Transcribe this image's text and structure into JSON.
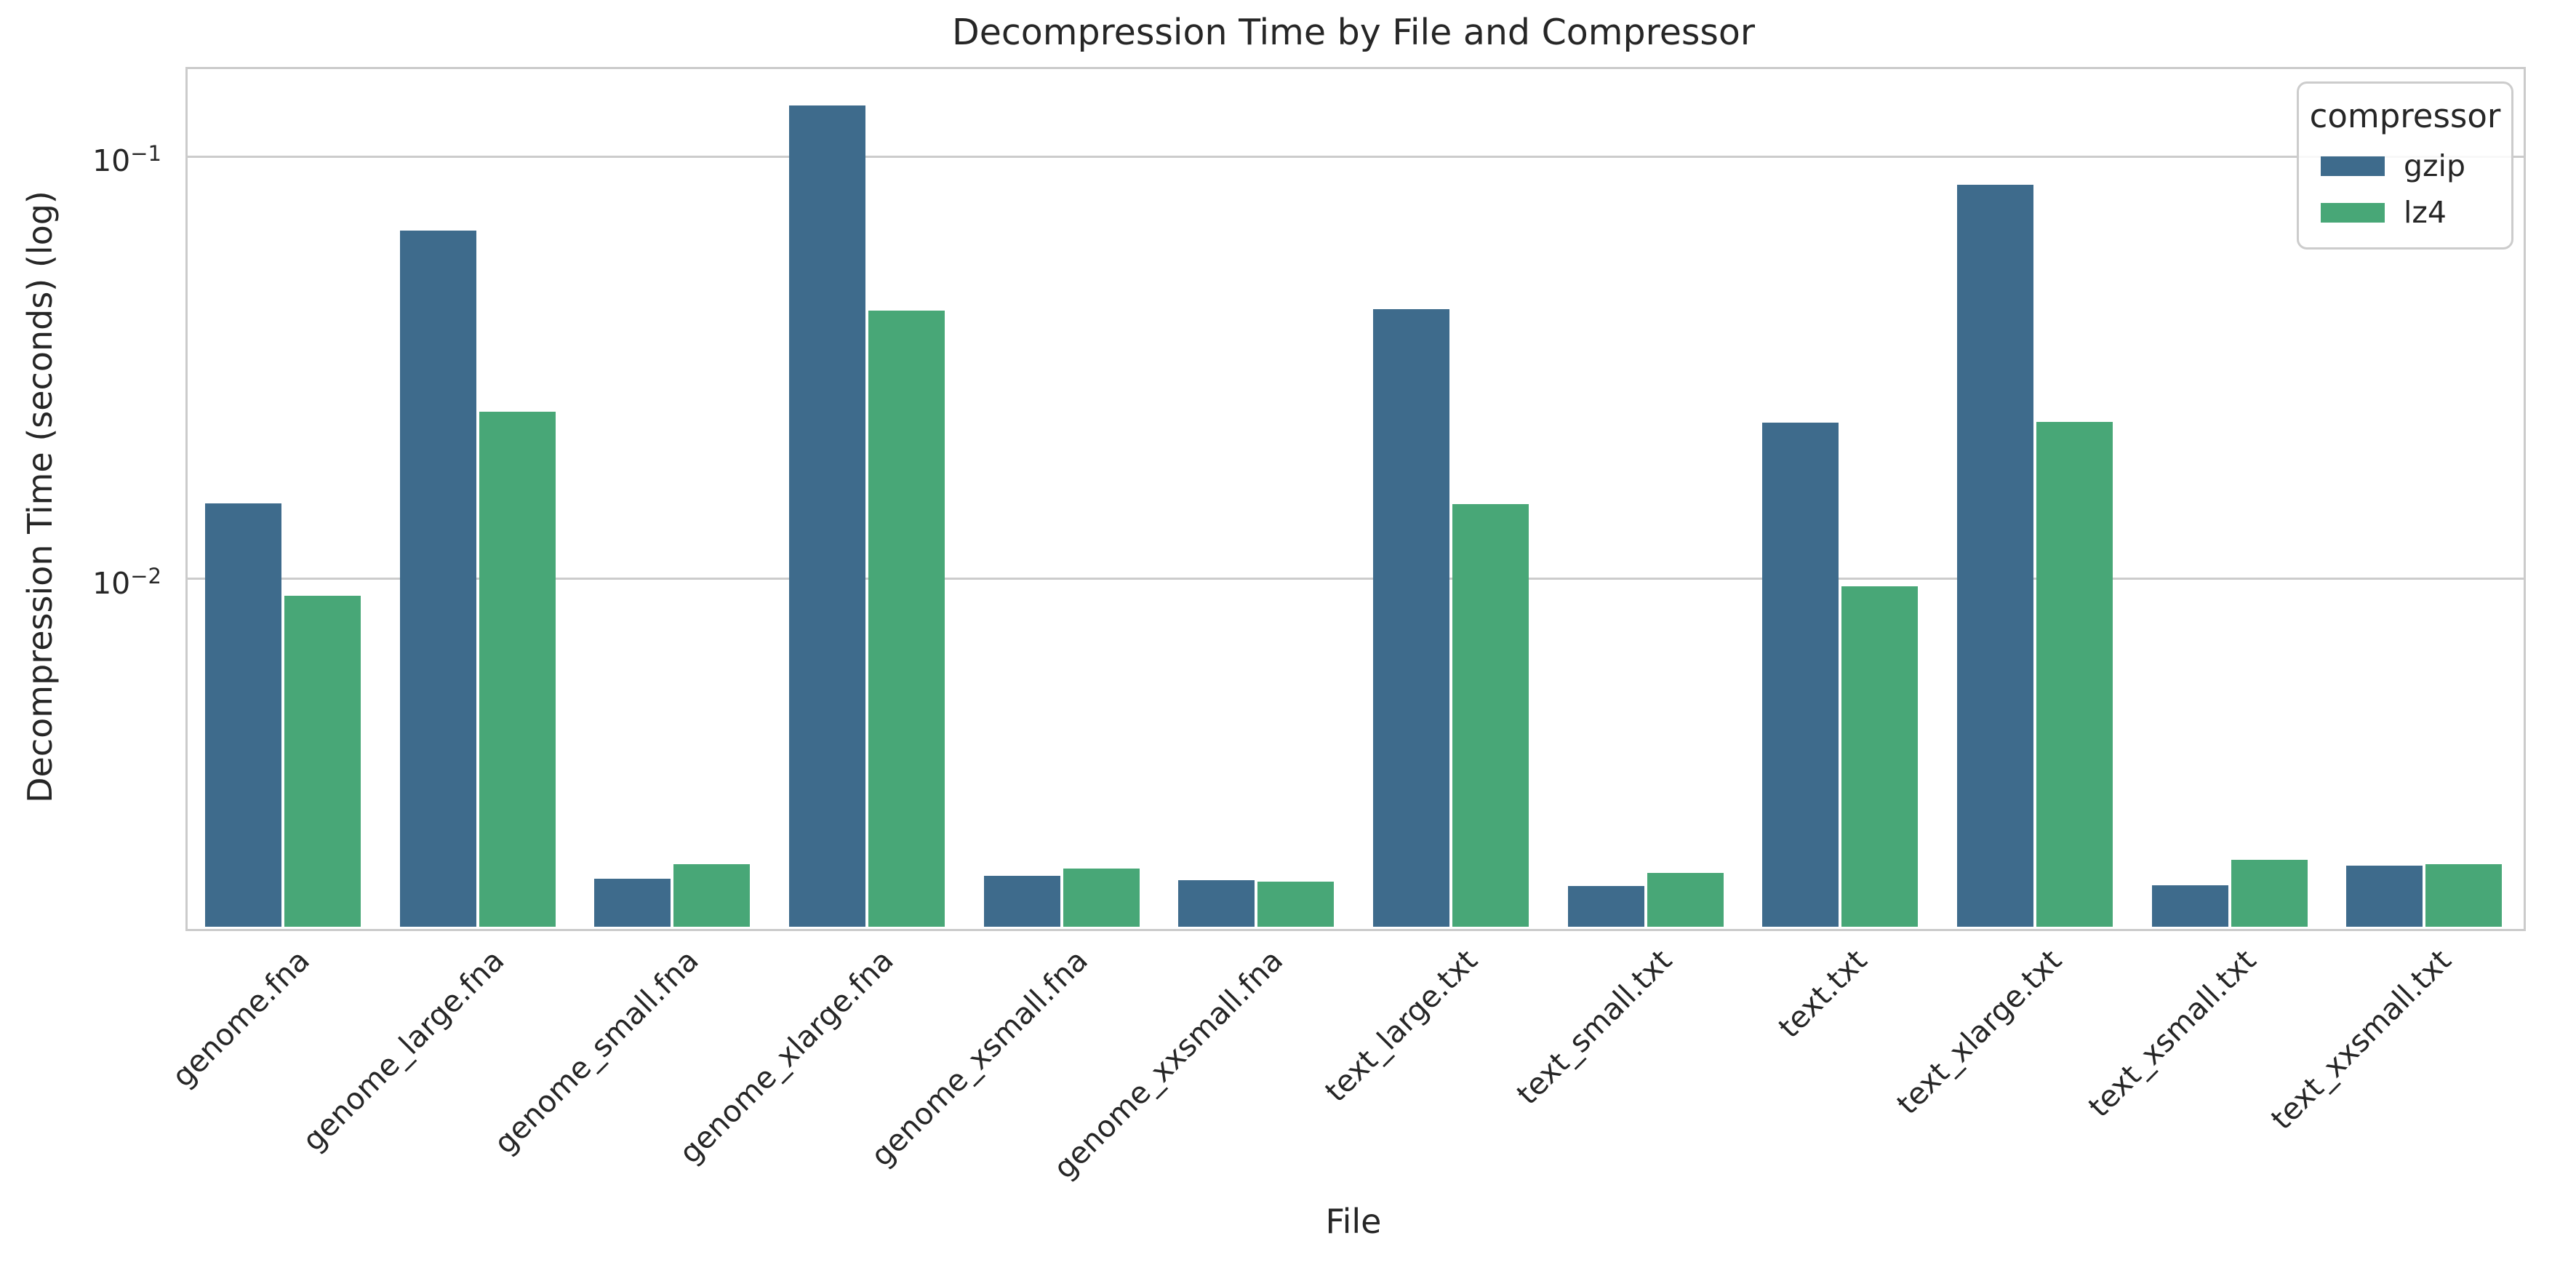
{
  "chart_data": {
    "type": "bar",
    "title": "Decompression Time by File and Compressor",
    "xlabel": "File",
    "ylabel": "Decompression Time (seconds) (log)",
    "yscale": "log",
    "ylim": [
      0.0015,
      0.163
    ],
    "grid": true,
    "gridline_color": "#cccccc",
    "categories": [
      "genome.fna",
      "genome_large.fna",
      "genome_small.fna",
      "genome_xlarge.fna",
      "genome_xsmall.fna",
      "genome_xxsmall.fna",
      "text_large.txt",
      "text_small.txt",
      "text.txt",
      "text_xlarge.txt",
      "text_xsmall.txt",
      "text_xxsmall.txt"
    ],
    "series": [
      {
        "name": "gzip",
        "color": "#3e6b8c",
        "values": [
          0.0151,
          0.0668,
          0.00195,
          0.132,
          0.00198,
          0.00193,
          0.0435,
          0.00187,
          0.0234,
          0.0856,
          0.00188,
          0.00209
        ]
      },
      {
        "name": "lz4",
        "color": "#48a777",
        "values": [
          0.0091,
          0.0249,
          0.00211,
          0.0432,
          0.00206,
          0.00192,
          0.015,
          0.00201,
          0.0096,
          0.0235,
          0.00216,
          0.00211
        ]
      }
    ],
    "yticks": [
      {
        "value": 0.1,
        "base": "10",
        "exponent": "−1"
      },
      {
        "value": 0.01,
        "base": "10",
        "exponent": "−2"
      }
    ],
    "legend": {
      "title": "compressor",
      "position": "upper right"
    }
  }
}
